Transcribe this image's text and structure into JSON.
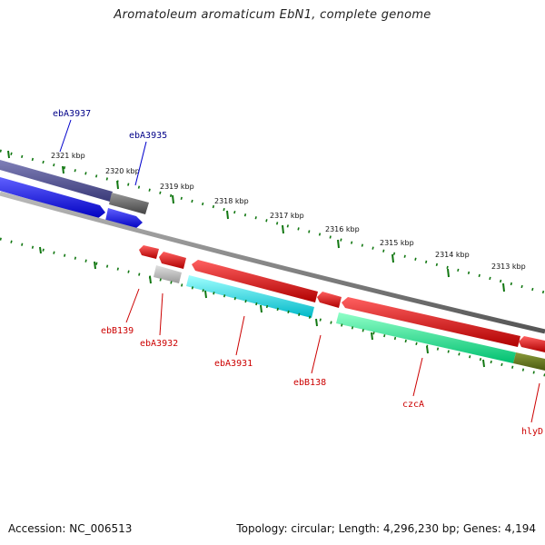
{
  "title": "Aromatoleum aromaticum EbN1, complete genome",
  "footer": {
    "accession": "Accession: NC_006513",
    "summary": "Topology: circular; Length: 4,296,230 bp; Genes: 4,194"
  },
  "kbp_labels": [
    "2321 kbp",
    "2320 kbp",
    "2319 kbp",
    "2318 kbp",
    "2317 kbp",
    "2316 kbp",
    "2315 kbp",
    "2314 kbp",
    "2313 kbp"
  ],
  "genes_forward": [
    {
      "label": "ebA3937",
      "color": "#000088"
    },
    {
      "label": "ebA3935",
      "color": "#000088"
    }
  ],
  "genes_reverse": [
    {
      "label": "ebB139",
      "color": "#cc0000"
    },
    {
      "label": "ebA3932",
      "color": "#cc0000"
    },
    {
      "label": "ebA3931",
      "color": "#cc0000"
    },
    {
      "label": "ebB138",
      "color": "#cc0000"
    },
    {
      "label": "czcA",
      "color": "#cc0000"
    },
    {
      "label": "hlyD",
      "color": "#cc0000"
    }
  ],
  "colors": {
    "tick": "#117711",
    "backbone": "#777777",
    "cog_purple": "#505090",
    "cog_blue": "#0000ee",
    "cog_gray": "#666666",
    "cog_red": "#ee0000",
    "cog_cyan": "#00dddd",
    "cog_green": "#00ee88",
    "cog_olive": "#667722",
    "cog_lightgray": "#bbbbbb"
  }
}
